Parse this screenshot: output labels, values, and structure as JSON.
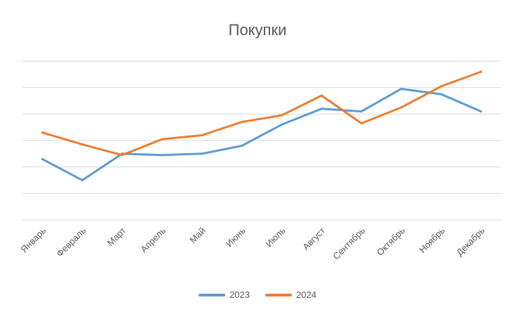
{
  "chart_data": {
    "type": "line",
    "title": "Покупки",
    "categories": [
      "Январь",
      "Февраль",
      "Март",
      "Апрель",
      "Май",
      "Июнь",
      "Июль",
      "Август",
      "Сентябрь",
      "Октябрь",
      "Ноябрь",
      "Декабрь"
    ],
    "ylim": [
      0,
      6
    ],
    "grid": true,
    "legend": "bottom",
    "series": [
      {
        "name": "2023",
        "color": "#5B9BD5",
        "values": [
          2.3,
          1.5,
          2.5,
          2.45,
          2.5,
          2.8,
          3.6,
          4.2,
          4.1,
          4.95,
          4.75,
          4.1
        ]
      },
      {
        "name": "2024",
        "color": "#ED7D31",
        "values": [
          3.3,
          2.85,
          2.45,
          3.05,
          3.2,
          3.7,
          3.95,
          4.7,
          3.65,
          4.25,
          5.05,
          5.6
        ]
      }
    ]
  }
}
